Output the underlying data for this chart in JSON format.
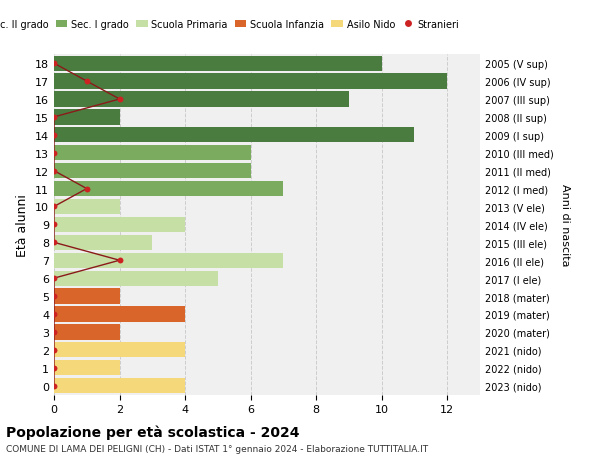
{
  "ages": [
    18,
    17,
    16,
    15,
    14,
    13,
    12,
    11,
    10,
    9,
    8,
    7,
    6,
    5,
    4,
    3,
    2,
    1,
    0
  ],
  "right_labels": [
    "2005 (V sup)",
    "2006 (IV sup)",
    "2007 (III sup)",
    "2008 (II sup)",
    "2009 (I sup)",
    "2010 (III med)",
    "2011 (II med)",
    "2012 (I med)",
    "2013 (V ele)",
    "2014 (IV ele)",
    "2015 (III ele)",
    "2016 (II ele)",
    "2017 (I ele)",
    "2018 (mater)",
    "2019 (mater)",
    "2020 (mater)",
    "2021 (nido)",
    "2022 (nido)",
    "2023 (nido)"
  ],
  "bar_values": [
    10,
    12,
    9,
    2,
    11,
    6,
    6,
    7,
    2,
    4,
    3,
    7,
    5,
    2,
    4,
    2,
    4,
    2,
    4
  ],
  "bar_colors": [
    "#4a7c3f",
    "#4a7c3f",
    "#4a7c3f",
    "#4a7c3f",
    "#4a7c3f",
    "#7aab5e",
    "#7aab5e",
    "#7aab5e",
    "#c5dfa5",
    "#c5dfa5",
    "#c5dfa5",
    "#c5dfa5",
    "#c5dfa5",
    "#d9652a",
    "#d9652a",
    "#d9652a",
    "#f5d87a",
    "#f5d87a",
    "#f5d87a"
  ],
  "stranieri_values": [
    0,
    1,
    2,
    0,
    0,
    0,
    0,
    1,
    0,
    0,
    0,
    2,
    0,
    0,
    0,
    0,
    0,
    0,
    0
  ],
  "legend_labels": [
    "Sec. II grado",
    "Sec. I grado",
    "Scuola Primaria",
    "Scuola Infanzia",
    "Asilo Nido",
    "Stranieri"
  ],
  "legend_colors": [
    "#4a7c3f",
    "#7aab5e",
    "#c5dfa5",
    "#d9652a",
    "#f5d87a",
    "#cc2222"
  ],
  "ylabel": "Età alunni",
  "right_ylabel": "Anni di nascita",
  "title": "Popolazione per età scolastica - 2024",
  "subtitle": "COMUNE DI LAMA DEI PELIGNI (CH) - Dati ISTAT 1° gennaio 2024 - Elaborazione TUTTITALIA.IT",
  "xlim": [
    0,
    13
  ],
  "background_color": "#ffffff",
  "bar_bg_color": "#f0f0f0",
  "grid_color": "#cccccc"
}
